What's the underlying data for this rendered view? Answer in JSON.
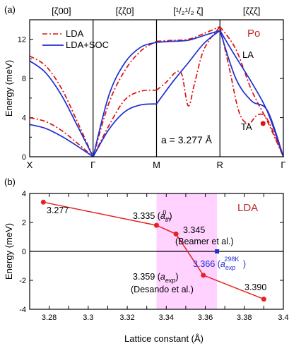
{
  "chart_data": [
    {
      "type": "line",
      "panel_label": "(a)",
      "ylabel": "Energy (meV)",
      "ylim": [
        0,
        14
      ],
      "yticks": [
        0,
        4,
        8,
        12
      ],
      "kpoint_labels": [
        "X",
        "Γ",
        "M",
        "R",
        "Γ"
      ],
      "kpoint_x": [
        0,
        1,
        2,
        3,
        4
      ],
      "direction_labels": [
        "[ζ00]",
        "[ζζ0]",
        "[¹/₂¹/₂ ζ]",
        "[ζζζ]"
      ],
      "element_label": "Po",
      "branch_labels": [
        "LA",
        "TA"
      ],
      "lattice_annotation": "a = 3.277 Å",
      "series": [
        {
          "name": "LDA",
          "color": "#dd1111",
          "style": "dashdot",
          "branches": [
            {
              "x": [
                0,
                0.25,
                0.5,
                0.75,
                1.0
              ],
              "y": [
                10.3,
                9.3,
                7.0,
                3.6,
                0
              ]
            },
            {
              "x": [
                0,
                0.25,
                0.5,
                0.75,
                1.0
              ],
              "y": [
                4.0,
                3.6,
                2.7,
                1.4,
                0
              ]
            },
            {
              "x": [
                1.0,
                1.25,
                1.5,
                1.75,
                2.0
              ],
              "y": [
                0,
                5.5,
                8.8,
                10.8,
                11.8
              ]
            },
            {
              "x": [
                1.0,
                1.25,
                1.5,
                1.75,
                2.0
              ],
              "y": [
                0,
                3.2,
                5.8,
                6.7,
                6.8
              ]
            },
            {
              "x": [
                2.0,
                2.25,
                2.5,
                2.75,
                3.0
              ],
              "y": [
                11.8,
                11.9,
                12.0,
                12.6,
                13.3
              ]
            },
            {
              "x": [
                2.0,
                2.15,
                2.3,
                2.4,
                2.5,
                2.6,
                2.75,
                3.0
              ],
              "y": [
                6.8,
                7.6,
                8.6,
                8.4,
                5.2,
                7.5,
                11.0,
                13.3
              ]
            },
            {
              "x": [
                3.0,
                3.25,
                3.5,
                3.75,
                4.0
              ],
              "y": [
                13.3,
                11.0,
                6.8,
                3.6,
                0
              ]
            },
            {
              "x": [
                3.0,
                3.15,
                3.3,
                3.45,
                3.6,
                3.75,
                4.0
              ],
              "y": [
                13.3,
                9.0,
                4.6,
                3.4,
                4.3,
                3.8,
                0
              ]
            }
          ]
        },
        {
          "name": "LDA+SOC",
          "color": "#1f2fd0",
          "style": "solid",
          "branches": [
            {
              "x": [
                0,
                0.25,
                0.5,
                0.75,
                1.0
              ],
              "y": [
                9.8,
                8.6,
                6.3,
                3.2,
                0
              ]
            },
            {
              "x": [
                0,
                0.25,
                0.5,
                0.75,
                1.0
              ],
              "y": [
                3.3,
                2.9,
                2.1,
                1.1,
                0
              ]
            },
            {
              "x": [
                1.0,
                1.25,
                1.5,
                1.75,
                2.0
              ],
              "y": [
                0,
                6.3,
                9.6,
                11.2,
                11.7
              ]
            },
            {
              "x": [
                1.0,
                1.25,
                1.5,
                1.75,
                2.0
              ],
              "y": [
                0,
                2.8,
                4.6,
                5.3,
                5.4
              ]
            },
            {
              "x": [
                2.0,
                2.25,
                2.5,
                2.75,
                3.0
              ],
              "y": [
                11.7,
                11.8,
                11.9,
                12.4,
                12.9
              ]
            },
            {
              "x": [
                2.0,
                2.25,
                2.5,
                2.75,
                3.0
              ],
              "y": [
                5.4,
                7.6,
                9.6,
                11.6,
                12.9
              ]
            },
            {
              "x": [
                3.0,
                3.25,
                3.5,
                3.75,
                4.0
              ],
              "y": [
                12.9,
                10.2,
                7.6,
                4.6,
                0
              ]
            },
            {
              "x": [
                3.0,
                3.25,
                3.5,
                3.75,
                4.0
              ],
              "y": [
                12.9,
                8.0,
                5.7,
                4.7,
                0
              ]
            }
          ]
        }
      ],
      "markers": [
        {
          "x": 3.68,
          "y": 3.4,
          "color": "#dd1111"
        }
      ]
    },
    {
      "type": "scatter",
      "panel_label": "(b)",
      "xlabel": "Lattice constant (Å)",
      "ylabel": "Energy (meV)",
      "xlim": [
        3.27,
        3.4
      ],
      "ylim": [
        -4,
        4
      ],
      "xticks": [
        "3.28",
        "3.29",
        "3.3",
        "3.31",
        "3.32",
        "3.33",
        "3.34",
        "3.35",
        "3.36",
        "3.37",
        "3.38",
        "3.39",
        "3.4"
      ],
      "yticks": [
        "-4",
        "-2",
        "0",
        "2",
        "4"
      ],
      "legend_text": "LDA",
      "shaded_region": [
        3.335,
        3.366
      ],
      "series": [
        {
          "name": "LDA",
          "color": "#e52222",
          "x": [
            3.277,
            3.335,
            3.345,
            3.359,
            3.39
          ],
          "y": [
            3.4,
            1.8,
            1.2,
            -1.65,
            -3.3
          ]
        }
      ],
      "point_labels": [
        {
          "x": 3.277,
          "y": 3.4,
          "text": "3.277",
          "color": "#000000"
        },
        {
          "x": 3.335,
          "y": 1.8,
          "text": "3.335 (a⁰th)",
          "color": "#000000"
        },
        {
          "x": 3.345,
          "y": 1.2,
          "text": "3.345",
          "subtext": "(Beamer et al.)",
          "color": "#000000"
        },
        {
          "x": 3.359,
          "y": -1.65,
          "text": "3.359 (aexp)",
          "subtext": "(Desando et al.)",
          "color": "#000000"
        },
        {
          "x": 3.39,
          "y": -3.3,
          "text": "3.390",
          "color": "#000000"
        }
      ],
      "exp_marker": {
        "x": 3.366,
        "y": 0,
        "color": "#1f2fd0",
        "text": "3.366 (a²⁹⁸ᴷexp )"
      }
    }
  ]
}
